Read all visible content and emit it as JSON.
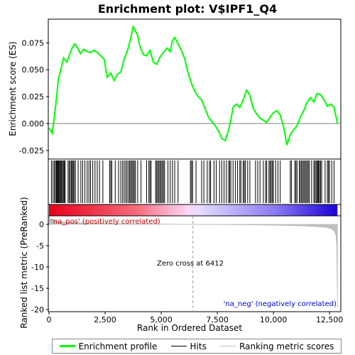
{
  "chart_data": {
    "type": "line",
    "title": "Enrichment plot: V$IPF1_Q4",
    "xlabel": "Rank in Ordered Dataset",
    "ylabel_top": "Enrichment score (ES)",
    "ylabel_bottom": "Ranked list metric (PreRanked)",
    "xlim": [
      0,
      13000
    ],
    "ylim_top": [
      -0.033,
      0.097
    ],
    "ylim_bottom": [
      -20.5,
      2.0
    ],
    "x_ticks": [
      0,
      2500,
      5000,
      7500,
      10000,
      12500
    ],
    "x_tick_labels": [
      "0",
      "2,500",
      "5,000",
      "7,500",
      "10,000",
      "12,500"
    ],
    "y_ticks_top": [
      -0.025,
      0.0,
      0.025,
      0.05,
      0.075
    ],
    "y_tick_labels_top": [
      "-0.025",
      "0.000",
      "0.025",
      "0.050",
      "0.075"
    ],
    "y_ticks_bottom": [
      0,
      -5,
      -10,
      -15,
      -20
    ],
    "y_tick_labels_bottom": [
      "0",
      "-5",
      "-10",
      "-15",
      "-20"
    ],
    "annotations": {
      "pos_label": "'na_pos' (positively correlated)",
      "neg_label": "'na_neg' (negatively correlated)",
      "zero_cross": "Zero cross at 6412"
    },
    "zero_cross_rank": 6412,
    "n_ranks": 12850,
    "colors": {
      "es_line": "#00ff00",
      "hits": "#000000",
      "metric": "#c0c0c0",
      "zero_line": "#808080",
      "pos_text": "#cc0000",
      "neg_text": "#0000cc",
      "bar_red": "#e8001c",
      "bar_blue": "#1a00d8"
    },
    "es_profile": {
      "x": [
        0,
        150,
        300,
        420,
        550,
        650,
        800,
        950,
        1050,
        1150,
        1250,
        1400,
        1550,
        1700,
        1850,
        2000,
        2150,
        2300,
        2450,
        2600,
        2750,
        2900,
        3050,
        3200,
        3350,
        3500,
        3650,
        3750,
        3850,
        3950,
        4050,
        4200,
        4350,
        4500,
        4650,
        4800,
        4950,
        5100,
        5250,
        5400,
        5500,
        5600,
        5750,
        5900,
        6050,
        6200,
        6350,
        6500,
        6650,
        6800,
        6950,
        7100,
        7250,
        7400,
        7550,
        7700,
        7850,
        8000,
        8100,
        8200,
        8350,
        8500,
        8650,
        8800,
        8950,
        9100,
        9250,
        9400,
        9550,
        9700,
        9850,
        10000,
        10150,
        10300,
        10450,
        10600,
        10750,
        10900,
        11050,
        11200,
        11350,
        11500,
        11650,
        11800,
        11950,
        12100,
        12250,
        12400,
        12550,
        12700,
        12850
      ],
      "y": [
        -0.004,
        -0.009,
        0.017,
        0.042,
        0.052,
        0.061,
        0.057,
        0.066,
        0.071,
        0.074,
        0.071,
        0.065,
        0.069,
        0.067,
        0.066,
        0.068,
        0.066,
        0.063,
        0.06,
        0.043,
        0.047,
        0.04,
        0.046,
        0.048,
        0.06,
        0.068,
        0.08,
        0.09,
        0.086,
        0.082,
        0.072,
        0.064,
        0.063,
        0.068,
        0.057,
        0.055,
        0.062,
        0.066,
        0.07,
        0.067,
        0.077,
        0.08,
        0.074,
        0.068,
        0.06,
        0.047,
        0.037,
        0.03,
        0.025,
        0.022,
        0.014,
        0.006,
        0.002,
        -0.002,
        -0.007,
        -0.014,
        -0.016,
        -0.006,
        0.003,
        0.015,
        0.018,
        0.015,
        0.022,
        0.031,
        0.026,
        0.014,
        0.009,
        0.005,
        0.003,
        0.001,
        0.006,
        0.01,
        0.012,
        0.008,
        -0.003,
        -0.02,
        -0.01,
        -0.006,
        -0.002,
        0.006,
        0.012,
        0.02,
        0.024,
        0.02,
        0.028,
        0.027,
        0.022,
        0.016,
        0.018,
        0.015,
        0.0
      ]
    },
    "hits": [
      110,
      180,
      240,
      290,
      330,
      360,
      390,
      420,
      450,
      480,
      520,
      560,
      600,
      640,
      680,
      720,
      850,
      900,
      950,
      1000,
      1040,
      1080,
      1120,
      1180,
      1300,
      1420,
      1500,
      1600,
      1700,
      1780,
      1850,
      1950,
      2050,
      2150,
      2250,
      2400,
      2700,
      2750,
      2800,
      2950,
      3100,
      3200,
      3280,
      3350,
      3420,
      3480,
      3550,
      3600,
      3650,
      3700,
      3750,
      3800,
      3850,
      3950,
      4100,
      4350,
      4450,
      4500,
      4550,
      4750,
      4800,
      4850,
      4900,
      4950,
      5000,
      5050,
      5100,
      5150,
      5300,
      5400,
      5500,
      5600,
      5750,
      6300,
      6350,
      6400,
      6550,
      6800,
      6900,
      7050,
      7150,
      7200,
      7350,
      7450,
      7600,
      7700,
      7800,
      7900,
      8000,
      8050,
      8100,
      8200,
      8300,
      8400,
      8500,
      8550,
      8650,
      8700,
      8750,
      8850,
      8950,
      9200,
      9300,
      9400,
      9550,
      9650,
      9700,
      9800,
      9850,
      9900,
      9950,
      10000,
      10100,
      10200,
      10300,
      10750,
      10800,
      10950,
      11000,
      11050,
      11150,
      11200,
      11250,
      11300,
      11350,
      11400,
      11450,
      11500,
      11550,
      11600,
      11700,
      11800,
      11850,
      11900,
      11950,
      11980,
      12010,
      12050,
      12100,
      12150,
      12300,
      12400,
      12450,
      12500,
      12600,
      12700
    ],
    "metric_curve": {
      "x": [
        0,
        40,
        100,
        200,
        400,
        700,
        1000,
        1500,
        2500,
        4000,
        5500,
        6412,
        7500,
        9000,
        10500,
        11500,
        12000,
        12400,
        12600,
        12720,
        12780,
        12820,
        12850
      ],
      "y": [
        1.9,
        1.5,
        1.2,
        0.95,
        0.7,
        0.55,
        0.45,
        0.35,
        0.22,
        0.12,
        0.04,
        0.0,
        -0.05,
        -0.12,
        -0.25,
        -0.4,
        -0.55,
        -0.75,
        -1.1,
        -1.6,
        -2.5,
        -5.0,
        -19.5
      ]
    },
    "legend": {
      "entries": [
        "Enrichment profile",
        "Hits",
        "Ranking metric scores"
      ]
    }
  }
}
